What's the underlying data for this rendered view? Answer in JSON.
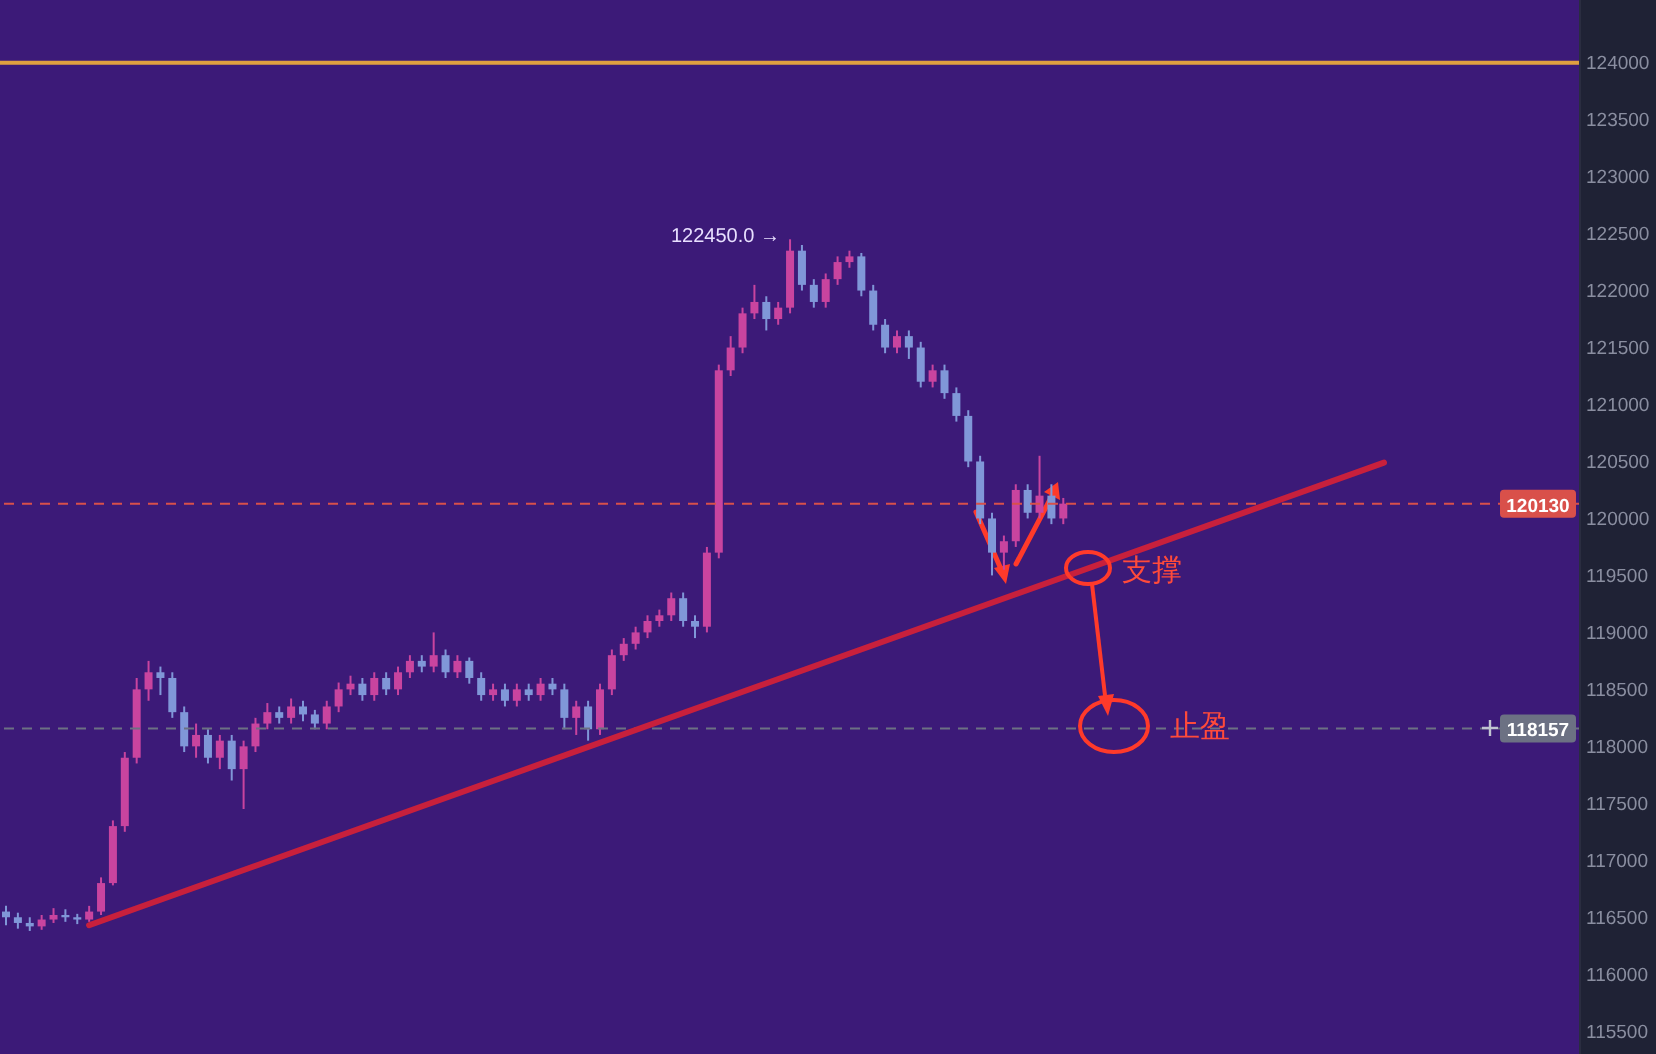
{
  "chart_data": {
    "type": "candlestick",
    "ylim": [
      115300,
      124550
    ],
    "yticks": [
      115500,
      116000,
      116500,
      117000,
      117500,
      118000,
      118500,
      119000,
      119500,
      120000,
      120500,
      121000,
      121500,
      122000,
      122500,
      123000,
      123500,
      124000
    ],
    "tick_labels": "y",
    "grid": false,
    "legend": false,
    "categories": [
      null,
      null,
      null,
      null,
      null,
      null,
      null,
      null,
      null,
      null,
      null,
      null,
      null,
      null,
      null,
      null,
      null,
      null,
      null,
      null,
      null,
      null,
      null,
      null,
      null,
      null,
      null,
      null,
      null,
      null,
      null,
      null,
      null,
      null,
      null,
      null,
      null,
      null,
      null,
      null,
      null,
      null,
      null,
      null,
      null,
      null,
      null,
      null,
      null,
      null,
      null,
      null,
      null,
      null,
      null,
      null,
      null,
      null,
      null,
      null,
      null,
      null,
      null,
      null,
      null,
      null,
      null,
      null,
      null,
      null,
      null,
      null,
      null,
      null,
      null,
      null,
      null,
      null,
      null,
      null,
      null,
      null,
      null,
      null,
      null,
      null,
      null,
      null,
      null,
      null,
      null,
      null,
      null,
      null,
      null,
      null,
      null,
      null,
      null,
      null,
      null,
      null,
      null,
      null,
      null,
      null,
      null,
      null,
      null,
      null,
      null,
      null,
      null,
      null,
      null,
      null,
      null,
      null,
      null,
      null,
      null,
      null,
      null,
      null,
      null,
      null,
      null,
      null,
      null,
      null,
      null,
      null,
      null
    ],
    "ohlc": [
      [
        116550,
        116600,
        116430,
        116500
      ],
      [
        116500,
        116540,
        116400,
        116450
      ],
      [
        116450,
        116500,
        116380,
        116420
      ],
      [
        116420,
        116520,
        116390,
        116480
      ],
      [
        116480,
        116580,
        116450,
        116520
      ],
      [
        116520,
        116570,
        116460,
        116500
      ],
      [
        116500,
        116530,
        116440,
        116480
      ],
      [
        116480,
        116600,
        116460,
        116550
      ],
      [
        116550,
        116850,
        116520,
        116800
      ],
      [
        116800,
        117350,
        116780,
        117300
      ],
      [
        117300,
        117950,
        117250,
        117900
      ],
      [
        117900,
        118600,
        117850,
        118500
      ],
      [
        118500,
        118750,
        118400,
        118650
      ],
      [
        118650,
        118700,
        118450,
        118600
      ],
      [
        118600,
        118650,
        118250,
        118300
      ],
      [
        118300,
        118350,
        117950,
        118000
      ],
      [
        118000,
        118200,
        117900,
        118100
      ],
      [
        118100,
        118150,
        117850,
        117900
      ],
      [
        117900,
        118100,
        117800,
        118050
      ],
      [
        118050,
        118100,
        117700,
        117800
      ],
      [
        117800,
        118050,
        117450,
        118000
      ],
      [
        118000,
        118250,
        117950,
        118200
      ],
      [
        118200,
        118380,
        118150,
        118300
      ],
      [
        118300,
        118350,
        118200,
        118250
      ],
      [
        118250,
        118420,
        118200,
        118350
      ],
      [
        118350,
        118400,
        118220,
        118280
      ],
      [
        118280,
        118320,
        118150,
        118200
      ],
      [
        118200,
        118400,
        118150,
        118350
      ],
      [
        118350,
        118560,
        118300,
        118500
      ],
      [
        118500,
        118620,
        118450,
        118550
      ],
      [
        118550,
        118600,
        118400,
        118450
      ],
      [
        118450,
        118650,
        118400,
        118600
      ],
      [
        118600,
        118650,
        118450,
        118500
      ],
      [
        118500,
        118700,
        118450,
        118650
      ],
      [
        118650,
        118800,
        118600,
        118750
      ],
      [
        118750,
        118800,
        118650,
        118700
      ],
      [
        118700,
        119000,
        118650,
        118800
      ],
      [
        118800,
        118850,
        118600,
        118650
      ],
      [
        118650,
        118800,
        118600,
        118750
      ],
      [
        118750,
        118780,
        118550,
        118600
      ],
      [
        118600,
        118650,
        118400,
        118450
      ],
      [
        118450,
        118550,
        118400,
        118500
      ],
      [
        118500,
        118550,
        118350,
        118400
      ],
      [
        118400,
        118550,
        118350,
        118500
      ],
      [
        118500,
        118550,
        118400,
        118450
      ],
      [
        118450,
        118600,
        118400,
        118550
      ],
      [
        118550,
        118600,
        118450,
        118500
      ],
      [
        118500,
        118550,
        118150,
        118250
      ],
      [
        118250,
        118400,
        118100,
        118350
      ],
      [
        118350,
        118400,
        118050,
        118150
      ],
      [
        118150,
        118550,
        118100,
        118500
      ],
      [
        118500,
        118850,
        118450,
        118800
      ],
      [
        118800,
        118950,
        118750,
        118900
      ],
      [
        118900,
        119050,
        118850,
        119000
      ],
      [
        119000,
        119150,
        118950,
        119100
      ],
      [
        119100,
        119200,
        119050,
        119150
      ],
      [
        119150,
        119350,
        119100,
        119300
      ],
      [
        119300,
        119350,
        119050,
        119100
      ],
      [
        119100,
        119150,
        118950,
        119050
      ],
      [
        119050,
        119750,
        119000,
        119700
      ],
      [
        119700,
        121350,
        119650,
        121300
      ],
      [
        121300,
        121600,
        121250,
        121500
      ],
      [
        121500,
        121850,
        121450,
        121800
      ],
      [
        121800,
        122050,
        121750,
        121900
      ],
      [
        121900,
        121950,
        121650,
        121750
      ],
      [
        121750,
        121900,
        121700,
        121850
      ],
      [
        121850,
        122450,
        121800,
        122350
      ],
      [
        122350,
        122400,
        122000,
        122050
      ],
      [
        122050,
        122100,
        121850,
        121900
      ],
      [
        121900,
        122150,
        121850,
        122100
      ],
      [
        122100,
        122300,
        122050,
        122250
      ],
      [
        122250,
        122350,
        122200,
        122300
      ],
      [
        122300,
        122330,
        121950,
        122000
      ],
      [
        122000,
        122050,
        121650,
        121700
      ],
      [
        121700,
        121750,
        121450,
        121500
      ],
      [
        121500,
        121650,
        121450,
        121600
      ],
      [
        121600,
        121650,
        121400,
        121500
      ],
      [
        121500,
        121550,
        121150,
        121200
      ],
      [
        121200,
        121350,
        121150,
        121300
      ],
      [
        121300,
        121350,
        121050,
        121100
      ],
      [
        121100,
        121150,
        120850,
        120900
      ],
      [
        120900,
        120950,
        120450,
        120500
      ],
      [
        120500,
        120550,
        119950,
        120000
      ],
      [
        120000,
        120050,
        119500,
        119700
      ],
      [
        119700,
        119850,
        119550,
        119800
      ],
      [
        119800,
        120300,
        119750,
        120250
      ],
      [
        120250,
        120300,
        120000,
        120050
      ],
      [
        120050,
        120550,
        120000,
        120200
      ],
      [
        120200,
        120300,
        119950,
        120000
      ],
      [
        120000,
        120180,
        119950,
        120130
      ],
      null,
      null,
      null,
      null,
      null,
      null,
      null,
      null,
      null,
      null,
      null,
      null,
      null,
      null,
      null,
      null,
      null,
      null,
      null,
      null,
      null,
      null,
      null,
      null,
      null,
      null,
      null,
      null,
      null,
      null,
      null,
      null,
      null,
      null,
      null,
      null,
      null,
      null,
      null,
      null,
      null,
      null,
      null
    ],
    "colors": [
      "#8097d8",
      "#8097d8",
      "#8097d8",
      "#c9449f",
      "#c9449f",
      "#8097d8",
      "#8097d8",
      "#c9449f",
      "#c9449f",
      "#c9449f",
      "#c9449f",
      "#c9449f",
      "#c9449f",
      "#8097d8",
      "#8097d8",
      "#8097d8",
      "#c9449f",
      "#8097d8",
      "#c9449f",
      "#8097d8",
      "#c9449f",
      "#c9449f",
      "#c9449f",
      "#8097d8",
      "#c9449f",
      "#8097d8",
      "#8097d8",
      "#c9449f",
      "#c9449f",
      "#c9449f",
      "#8097d8",
      "#c9449f",
      "#8097d8",
      "#c9449f",
      "#c9449f",
      "#8097d8",
      "#c9449f",
      "#8097d8",
      "#c9449f",
      "#8097d8",
      "#8097d8",
      "#c9449f",
      "#8097d8",
      "#c9449f",
      "#8097d8",
      "#c9449f",
      "#8097d8",
      "#8097d8",
      "#c9449f",
      "#8097d8",
      "#c9449f",
      "#c9449f",
      "#c9449f",
      "#c9449f",
      "#c9449f",
      "#c9449f",
      "#c9449f",
      "#8097d8",
      "#8097d8",
      "#c9449f",
      "#c9449f",
      "#c9449f",
      "#c9449f",
      "#c9449f",
      "#8097d8",
      "#c9449f",
      "#c9449f",
      "#8097d8",
      "#8097d8",
      "#c9449f",
      "#c9449f",
      "#c9449f",
      "#8097d8",
      "#8097d8",
      "#8097d8",
      "#c9449f",
      "#8097d8",
      "#8097d8",
      "#c9449f",
      "#8097d8",
      "#8097d8",
      "#8097d8",
      "#8097d8",
      "#8097d8",
      "#c9449f",
      "#c9449f",
      "#8097d8",
      "#c9449f",
      "#8097d8",
      "#c9449f",
      null,
      null,
      null,
      null,
      null,
      null,
      null,
      null,
      null,
      null,
      null,
      null,
      null,
      null,
      null,
      null,
      null,
      null,
      null,
      null,
      null,
      null,
      null,
      null,
      null,
      null,
      null,
      null,
      null,
      null,
      null,
      null,
      null,
      null,
      null,
      null,
      null,
      null,
      null,
      null,
      null,
      null,
      null
    ],
    "series": [
      {
        "type": "line",
        "values": [
          null,
          null,
          null,
          null,
          null,
          null,
          null,
          116430,
          null,
          null,
          null,
          null,
          null,
          null,
          null,
          null,
          null,
          null,
          null,
          null,
          null,
          null,
          null,
          null,
          null,
          null,
          null,
          null,
          null,
          null,
          null,
          null,
          null,
          null,
          null,
          null,
          null,
          null,
          null,
          null,
          null,
          null,
          null,
          null,
          null,
          null,
          null,
          null,
          null,
          null,
          null,
          null,
          null,
          null,
          null,
          null,
          null,
          null,
          null,
          null,
          null,
          null,
          null,
          null,
          null,
          null,
          null,
          null,
          null,
          null,
          null,
          null,
          null,
          null,
          null,
          null,
          null,
          null,
          null,
          null,
          null,
          null,
          null,
          null,
          null,
          null,
          null,
          null,
          null,
          null,
          null,
          null,
          null,
          null,
          null,
          null,
          null,
          null,
          null,
          null,
          null,
          null,
          null,
          null,
          null,
          null,
          null,
          null,
          null,
          null,
          null,
          null,
          null,
          null,
          null,
          null,
          120490,
          null,
          null,
          null,
          null,
          null,
          null,
          null,
          null,
          null,
          null,
          null,
          null,
          null,
          null,
          null,
          null
        ],
        "color": "#c8203c",
        "marker": "none",
        "line_style": "solid"
      }
    ],
    "ref_lines": [
      {
        "axis": "y",
        "value": 124000,
        "color": "#e0a040",
        "line_style": "solid"
      },
      {
        "axis": "y",
        "value": 120130,
        "label": "120130",
        "color": "#d9504a",
        "line_style": "dashed"
      },
      {
        "axis": "y",
        "value": 118157,
        "label": "118157",
        "color": "#6c7183",
        "line_style": "dashed"
      }
    ],
    "annotations": [
      "122450.0 →",
      "支撑",
      "止盈"
    ]
  }
}
